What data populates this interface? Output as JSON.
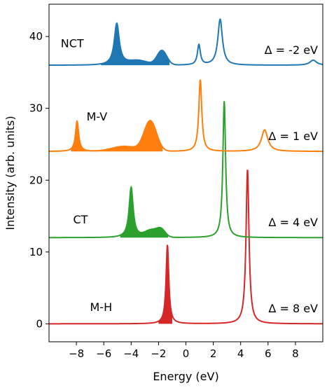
{
  "chart_data": {
    "type": "line",
    "xlabel": "Energy (eV)",
    "ylabel": "Intensity (arb. units)",
    "xlim": [
      -10,
      10
    ],
    "ylim": [
      -2.5,
      44.5
    ],
    "grid": false,
    "legend": "none",
    "x_ticks": [
      -8,
      -6,
      -4,
      -2,
      0,
      2,
      4,
      6,
      8
    ],
    "x_tick_labels": [
      "−8",
      "−6",
      "−4",
      "−2",
      "0",
      "2",
      "4",
      "6",
      "8"
    ],
    "y_ticks": [
      0,
      10,
      20,
      30,
      40
    ],
    "y_tick_labels": [
      "0",
      "10",
      "20",
      "30",
      "40"
    ],
    "series": [
      {
        "name": "M-H",
        "annotation": "Δ = 8 eV",
        "color": "#d62728",
        "offset": 0,
        "shaded_x_range": [
          -2.0,
          -1.0
        ],
        "peaks": [
          {
            "x": -1.35,
            "height": 11.0,
            "width": 0.12
          },
          {
            "x": 4.5,
            "height": 21.5,
            "width": 0.13
          }
        ],
        "bumps": []
      },
      {
        "name": "CT",
        "annotation": "Δ = 4 eV",
        "color": "#2ca02c",
        "offset": 12,
        "shaded_x_range": [
          -4.8,
          -1.3
        ],
        "peaks": [
          {
            "x": -4.0,
            "height": 7.0,
            "width": 0.18
          },
          {
            "x": 2.8,
            "height": 19.0,
            "width": 0.12
          }
        ],
        "bumps": [
          {
            "x": -2.5,
            "height": 1.0,
            "width": 0.5
          },
          {
            "x": -1.8,
            "height": 0.9,
            "width": 0.3
          }
        ]
      },
      {
        "name": "M-V",
        "annotation": "Δ = 1 eV",
        "color": "#ff7f0e",
        "offset": 24,
        "shaded_x_range": [
          -8.4,
          -1.7
        ],
        "peaks": [
          {
            "x": -7.95,
            "height": 4.2,
            "width": 0.14
          },
          {
            "x": 1.05,
            "height": 10.0,
            "width": 0.13
          },
          {
            "x": 5.75,
            "height": 3.0,
            "width": 0.28
          }
        ],
        "bumps": [
          {
            "x": -4.5,
            "height": 0.7,
            "width": 0.9
          },
          {
            "x": -2.6,
            "height": 4.2,
            "width": 0.45
          }
        ]
      },
      {
        "name": "NCT",
        "annotation": "Δ = -2 eV",
        "color": "#1f77b4",
        "offset": 36,
        "shaded_x_range": [
          -6.2,
          -1.2
        ],
        "peaks": [
          {
            "x": -5.05,
            "height": 5.8,
            "width": 0.22
          },
          {
            "x": 0.95,
            "height": 2.8,
            "width": 0.13
          },
          {
            "x": 2.5,
            "height": 6.4,
            "width": 0.2
          },
          {
            "x": 9.3,
            "height": 0.7,
            "width": 0.3
          }
        ],
        "bumps": [
          {
            "x": -3.5,
            "height": 0.6,
            "width": 0.7
          },
          {
            "x": -1.75,
            "height": 2.0,
            "width": 0.35
          }
        ]
      }
    ]
  }
}
